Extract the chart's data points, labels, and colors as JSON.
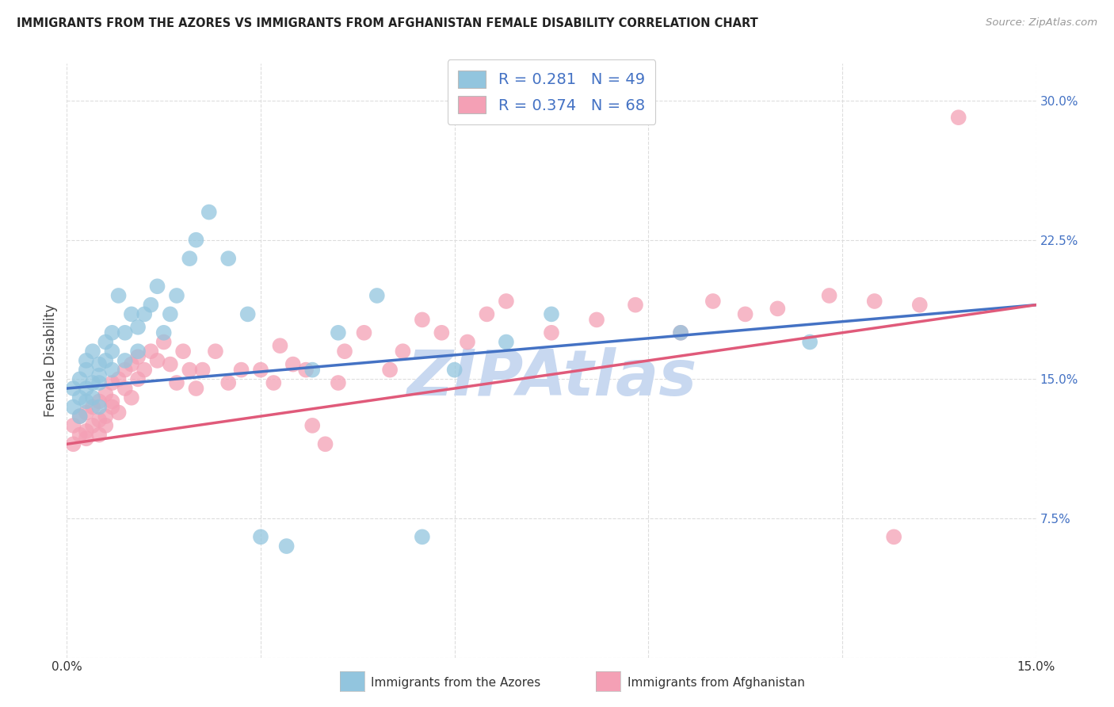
{
  "title": "IMMIGRANTS FROM THE AZORES VS IMMIGRANTS FROM AFGHANISTAN FEMALE DISABILITY CORRELATION CHART",
  "source": "Source: ZipAtlas.com",
  "xlabel": "",
  "ylabel": "Female Disability",
  "xlim": [
    0.0,
    0.15
  ],
  "ylim": [
    0.0,
    0.32
  ],
  "xticks": [
    0.0,
    0.03,
    0.06,
    0.09,
    0.12,
    0.15
  ],
  "xtick_labels": [
    "0.0%",
    "",
    "",
    "",
    "",
    "15.0%"
  ],
  "ytick_labels_right": [
    "",
    "7.5%",
    "15.0%",
    "22.5%",
    "30.0%"
  ],
  "yticks_right": [
    0.0,
    0.075,
    0.15,
    0.225,
    0.3
  ],
  "r_azores": 0.281,
  "n_azores": 49,
  "r_afghanistan": 0.374,
  "n_afghanistan": 68,
  "color_azores": "#92c5de",
  "color_afghanistan": "#f4a0b5",
  "line_color_azores": "#4472c4",
  "line_color_afghanistan": "#e05a7a",
  "legend_label_azores": "Immigrants from the Azores",
  "legend_label_afghanistan": "Immigrants from Afghanistan",
  "watermark": "ZIPAtlas",
  "watermark_color": "#c8d8f0",
  "background_color": "#ffffff",
  "grid_color": "#dddddd",
  "azores_x": [
    0.001,
    0.001,
    0.002,
    0.002,
    0.002,
    0.003,
    0.003,
    0.003,
    0.003,
    0.004,
    0.004,
    0.004,
    0.005,
    0.005,
    0.005,
    0.005,
    0.006,
    0.006,
    0.007,
    0.007,
    0.007,
    0.008,
    0.009,
    0.009,
    0.01,
    0.011,
    0.011,
    0.012,
    0.013,
    0.014,
    0.015,
    0.016,
    0.017,
    0.019,
    0.02,
    0.022,
    0.025,
    0.028,
    0.03,
    0.034,
    0.038,
    0.042,
    0.048,
    0.055,
    0.06,
    0.068,
    0.075,
    0.095,
    0.115
  ],
  "azores_y": [
    0.145,
    0.135,
    0.14,
    0.15,
    0.13,
    0.138,
    0.145,
    0.155,
    0.16,
    0.148,
    0.14,
    0.165,
    0.152,
    0.158,
    0.135,
    0.148,
    0.16,
    0.17,
    0.175,
    0.155,
    0.165,
    0.195,
    0.16,
    0.175,
    0.185,
    0.165,
    0.178,
    0.185,
    0.19,
    0.2,
    0.175,
    0.185,
    0.195,
    0.215,
    0.225,
    0.24,
    0.215,
    0.185,
    0.065,
    0.06,
    0.155,
    0.175,
    0.195,
    0.065,
    0.155,
    0.17,
    0.185,
    0.175,
    0.17
  ],
  "afghanistan_x": [
    0.001,
    0.001,
    0.002,
    0.002,
    0.003,
    0.003,
    0.003,
    0.004,
    0.004,
    0.005,
    0.005,
    0.005,
    0.006,
    0.006,
    0.006,
    0.007,
    0.007,
    0.007,
    0.008,
    0.008,
    0.009,
    0.009,
    0.01,
    0.01,
    0.011,
    0.011,
    0.012,
    0.013,
    0.014,
    0.015,
    0.016,
    0.017,
    0.018,
    0.019,
    0.02,
    0.021,
    0.023,
    0.025,
    0.027,
    0.03,
    0.032,
    0.033,
    0.035,
    0.037,
    0.038,
    0.04,
    0.042,
    0.043,
    0.046,
    0.05,
    0.052,
    0.055,
    0.058,
    0.062,
    0.065,
    0.068,
    0.075,
    0.082,
    0.088,
    0.095,
    0.1,
    0.105,
    0.11,
    0.118,
    0.125,
    0.128,
    0.132,
    0.138
  ],
  "afghanistan_y": [
    0.125,
    0.115,
    0.12,
    0.13,
    0.122,
    0.132,
    0.118,
    0.125,
    0.135,
    0.128,
    0.138,
    0.12,
    0.13,
    0.142,
    0.125,
    0.135,
    0.148,
    0.138,
    0.15,
    0.132,
    0.145,
    0.155,
    0.14,
    0.158,
    0.15,
    0.162,
    0.155,
    0.165,
    0.16,
    0.17,
    0.158,
    0.148,
    0.165,
    0.155,
    0.145,
    0.155,
    0.165,
    0.148,
    0.155,
    0.155,
    0.148,
    0.168,
    0.158,
    0.155,
    0.125,
    0.115,
    0.148,
    0.165,
    0.175,
    0.155,
    0.165,
    0.182,
    0.175,
    0.17,
    0.185,
    0.192,
    0.175,
    0.182,
    0.19,
    0.175,
    0.192,
    0.185,
    0.188,
    0.195,
    0.192,
    0.065,
    0.19,
    0.291
  ]
}
